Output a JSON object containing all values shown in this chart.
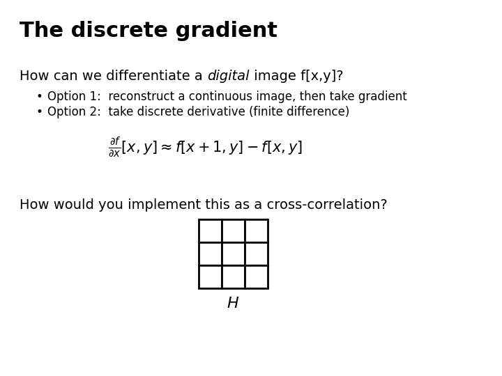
{
  "title": "The discrete gradient",
  "title_fontsize": 22,
  "bg_color": "#ffffff",
  "text_color": "#000000",
  "line1_pre": "How can we differentiate a ",
  "line1_italic": "digital",
  "line1_post": " image f[x,y]?",
  "line1_fontsize": 14,
  "bullet1": "Option 1:  reconstruct a continuous image, then take gradient",
  "bullet2": "Option 2:  take discrete derivative (finite difference)",
  "bullet_fontsize": 12,
  "formula_fontsize": 14,
  "question": "How would you implement this as a cross-correlation?",
  "question_fontsize": 14,
  "grid_label": "H",
  "grid_rows": 3,
  "grid_cols": 3
}
